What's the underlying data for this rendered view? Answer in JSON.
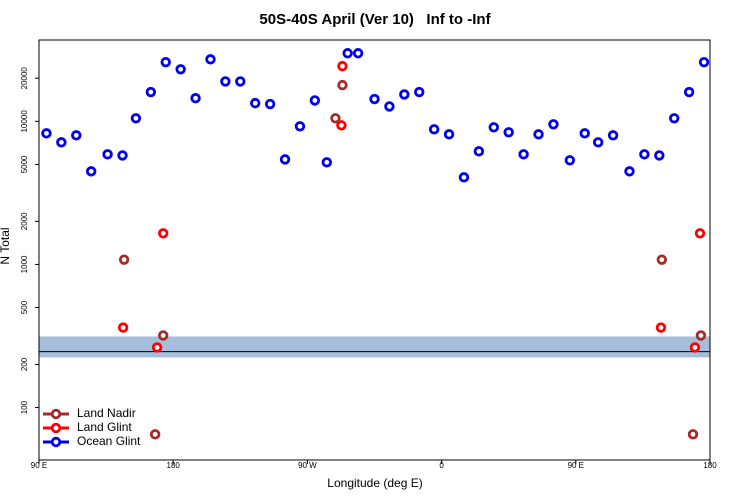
{
  "chart_data": {
    "type": "scatter",
    "title": "50S-40S April (Ver 10)   Inf to -Inf",
    "x_label": "Longitude (deg E)",
    "y_label": "N Total",
    "log_y": true,
    "legend": "bottomleft",
    "xlim": [
      90,
      540
    ],
    "xticks": [
      {
        "value": 90,
        "label": "90 E"
      },
      180,
      {
        "value": 270,
        "label": "90 W"
      },
      {
        "value": 360,
        "label": "0"
      },
      {
        "value": 450,
        "label": "90 E"
      },
      {
        "value": 540,
        "label": "180"
      }
    ],
    "ylim": [
      43,
      37000
    ],
    "yticks": [
      100,
      200,
      500,
      1000,
      2000,
      5000,
      10000,
      20000
    ],
    "band_range": [
      224,
      314
    ],
    "band_color": "#a6bddb",
    "hline": 246,
    "series": [
      {
        "name": "Land Nadir",
        "color": "#a52a2a",
        "x": [
          147.1,
          173.3,
          167.9,
          288.8,
          293.5,
          507.7,
          533.9,
          528.6
        ],
        "values": [
          1080,
          319,
          65,
          10500,
          17900,
          1080,
          319,
          65
        ]
      },
      {
        "name": "Land Glint",
        "color": "#ff0000",
        "x": [
          146.4,
          169.2,
          173.3,
          292.8,
          293.5,
          507.1,
          529.9,
          533.3
        ],
        "values": [
          362,
          263,
          1650,
          9380,
          24300,
          362,
          263,
          1650
        ]
      },
      {
        "name": "Ocean Glint",
        "color": "#0000ee",
        "x": [
          95,
          105,
          115,
          125,
          136,
          146,
          155,
          165,
          175,
          185,
          195,
          205,
          215,
          225,
          235,
          245,
          255,
          265,
          275,
          283,
          297,
          304,
          315,
          325,
          335,
          345,
          355,
          365,
          375,
          385,
          395,
          405,
          415,
          425,
          435,
          446,
          456,
          465,
          475,
          486,
          496,
          506,
          516,
          526,
          536
        ],
        "values": [
          8240,
          7130,
          7980,
          4470,
          5880,
          5780,
          10500,
          16000,
          25900,
          23100,
          14500,
          27100,
          19000,
          19000,
          13400,
          13200,
          5420,
          9230,
          14000,
          5170,
          29900,
          29900,
          14300,
          12700,
          15400,
          16000,
          8790,
          8110,
          4060,
          6170,
          9080,
          8380,
          5880,
          8110,
          9530,
          5340,
          8240,
          7130,
          7980,
          4470,
          5880,
          5780,
          10500,
          16000,
          25900
        ]
      }
    ]
  }
}
